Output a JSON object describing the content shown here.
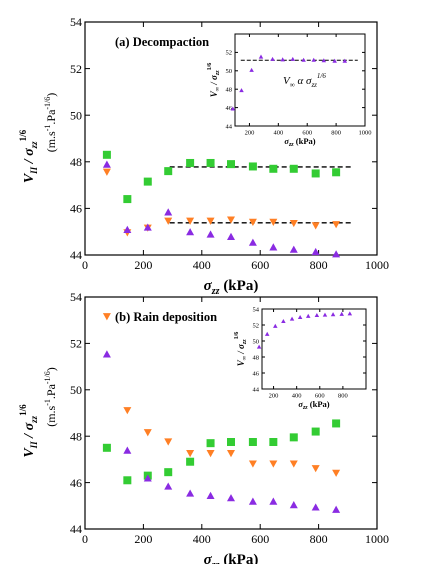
{
  "chart_data": [
    {
      "type": "scatter",
      "title": "(a) Decompaction",
      "xlabel": "σ_zz (kPa)",
      "ylabel": "V_II / σ_zz^(1/6) (m.s^-1.Pa^-1/6)",
      "xlim": [
        0,
        1000
      ],
      "ylim": [
        44,
        54
      ],
      "xticks": [
        0,
        200,
        400,
        600,
        800,
        1000
      ],
      "yticks": [
        44,
        46,
        48,
        50,
        52,
        54
      ],
      "grid": false,
      "series": [
        {
          "marker": "square",
          "color": "#33cc33",
          "x": [
            75,
            145,
            215,
            285,
            360,
            430,
            500,
            575,
            645,
            715,
            790,
            860
          ],
          "y": [
            48.3,
            46.4,
            47.15,
            47.6,
            47.95,
            47.95,
            47.9,
            47.8,
            47.7,
            47.7,
            47.5,
            47.55
          ]
        },
        {
          "marker": "triangle-down",
          "color": "#ff7f24",
          "x": [
            75,
            145,
            215,
            285,
            360,
            430,
            500,
            575,
            645,
            715,
            790,
            860
          ],
          "y": [
            47.55,
            44.95,
            45.15,
            45.45,
            45.45,
            45.45,
            45.5,
            45.4,
            45.4,
            45.35,
            45.25,
            45.3
          ]
        },
        {
          "marker": "triangle-up",
          "color": "#8a2be2",
          "x": [
            75,
            145,
            215,
            285,
            360,
            430,
            500,
            575,
            645,
            715,
            790,
            860
          ],
          "y": [
            47.9,
            45.1,
            45.2,
            45.85,
            45.0,
            44.9,
            44.8,
            44.55,
            44.35,
            44.25,
            44.15,
            44.05
          ]
        }
      ],
      "reference_lines": [
        {
          "style": "dashed",
          "x": [
            290,
            920
          ],
          "y": 47.78
        },
        {
          "style": "dashed",
          "x": [
            290,
            920
          ],
          "y": 45.38
        }
      ],
      "inset": {
        "annotation": "V_∞ α σ_zz^(1/6)",
        "xlabel": "σ_zz (kPa)",
        "ylabel": "V_∞ / σ_zz^(1/6)",
        "xlim": [
          100,
          1000
        ],
        "ylim": [
          44,
          54
        ],
        "xticks": [
          200,
          400,
          600,
          800,
          1000
        ],
        "yticks": [
          44,
          46,
          48,
          50,
          52
        ],
        "series": [
          {
            "marker": "triangle-up",
            "color": "#8a2be2",
            "x": [
              85,
              145,
              215,
              280,
              360,
              430,
              500,
              575,
              645,
              715,
              790,
              860
            ],
            "y": [
              45.9,
              47.9,
              50.1,
              51.55,
              51.3,
              51.25,
              51.3,
              51.2,
              51.2,
              51.15,
              51.1,
              51.1
            ]
          }
        ],
        "reference_lines": [
          {
            "style": "dashed",
            "x": [
              140,
              950
            ],
            "y": 51.15
          }
        ]
      }
    },
    {
      "type": "scatter",
      "title": "(b) Rain deposition",
      "xlabel": "σ_zz (kPa)",
      "ylabel": "V_II / σ_zz^(1/6) (m.s^-1.Pa^-1/6)",
      "xlim": [
        0,
        1000
      ],
      "ylim": [
        44,
        54
      ],
      "xticks": [
        0,
        200,
        400,
        600,
        800,
        1000
      ],
      "yticks": [
        44,
        46,
        48,
        50,
        52,
        54
      ],
      "grid": false,
      "series": [
        {
          "marker": "square",
          "color": "#33cc33",
          "x": [
            75,
            145,
            215,
            285,
            360,
            430,
            500,
            575,
            645,
            715,
            790,
            860
          ],
          "y": [
            47.5,
            46.1,
            46.3,
            46.45,
            46.9,
            47.7,
            47.75,
            47.75,
            47.75,
            47.95,
            48.2,
            48.55
          ]
        },
        {
          "marker": "triangle-down",
          "color": "#ff7f24",
          "x": [
            75,
            145,
            215,
            285,
            360,
            430,
            500,
            575,
            645,
            715,
            790,
            860
          ],
          "y": [
            53.15,
            49.1,
            48.15,
            47.75,
            47.25,
            47.25,
            47.25,
            46.8,
            46.8,
            46.8,
            46.6,
            46.4
          ]
        },
        {
          "marker": "triangle-up",
          "color": "#8a2be2",
          "x": [
            75,
            145,
            215,
            285,
            360,
            430,
            500,
            575,
            645,
            715,
            790,
            860
          ],
          "y": [
            51.55,
            47.4,
            46.2,
            45.85,
            45.55,
            45.45,
            45.35,
            45.2,
            45.2,
            45.05,
            44.95,
            44.85
          ]
        }
      ],
      "inset": {
        "xlabel": "σ_zz (kPa)",
        "ylabel": "V_∞ / σ_zz^(1/6)",
        "xlim": [
          100,
          1000
        ],
        "ylim": [
          44,
          54
        ],
        "xticks": [
          200,
          400,
          600,
          800
        ],
        "yticks": [
          44,
          46,
          48,
          50,
          52,
          54
        ],
        "series": [
          {
            "marker": "triangle-up",
            "color": "#8a2be2",
            "x": [
              75,
              145,
              215,
              285,
              360,
              430,
              500,
              575,
              645,
              715,
              790,
              860
            ],
            "y": [
              49.3,
              50.9,
              51.9,
              52.5,
              52.8,
              53.0,
              53.15,
              53.25,
              53.3,
              53.35,
              53.4,
              53.45
            ]
          }
        ]
      }
    }
  ]
}
